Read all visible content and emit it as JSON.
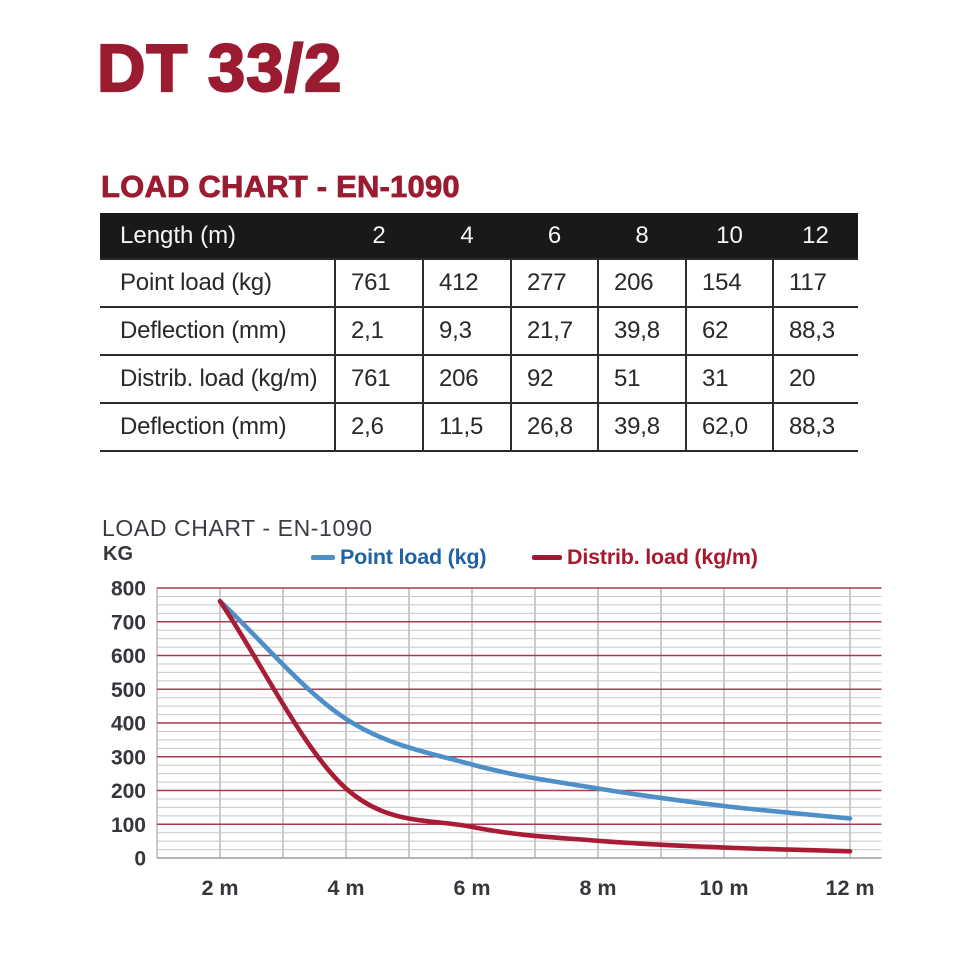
{
  "page": {
    "title": "DT 33/2"
  },
  "colors": {
    "maroon": "#9b1b31",
    "table_header_bg": "#1b1918",
    "grid_major_red": "#a63b52",
    "grid_minor_gray": "#c8c8c8",
    "grid_vertical_gray": "#a9a9a9",
    "axis_zero_gray": "#9a9a9a",
    "tick_label": "#36363d"
  },
  "table_section": {
    "heading": "LOAD CHART - EN-1090",
    "header": [
      "Length (m)",
      "2",
      "4",
      "6",
      "8",
      "10",
      "12"
    ],
    "rows": [
      [
        "Point load (kg)",
        "761",
        "412",
        "277",
        "206",
        "154",
        "117"
      ],
      [
        "Deflection (mm)",
        "2,1",
        "9,3",
        "21,7",
        "39,8",
        "62",
        "88,3"
      ],
      [
        "Distrib. load (kg/m)",
        "761",
        "206",
        "92",
        "51",
        "31",
        "20"
      ],
      [
        "Deflection (mm)",
        "2,6",
        "11,5",
        "26,8",
        "39,8",
        "62,0",
        "88,3"
      ]
    ]
  },
  "chart": {
    "title": "LOAD CHART - EN-1090",
    "y_axis_label": "KG",
    "legend": [
      {
        "label": "Point load (kg)",
        "text_color": "#2063a5",
        "dash_color": "#4e8fc7"
      },
      {
        "label": "Distrib. load (kg/m)",
        "text_color": "#a6192e",
        "dash_color": "#9c1b32"
      }
    ]
  },
  "chart_data": {
    "type": "line",
    "x": [
      2,
      4,
      6,
      8,
      10,
      12
    ],
    "x_tick_labels": [
      "2 m",
      "4 m",
      "6 m",
      "8 m",
      "10 m",
      "12 m"
    ],
    "series": [
      {
        "name": "Point load (kg)",
        "values": [
          761,
          412,
          277,
          206,
          154,
          117
        ],
        "color": "#4e8fc7"
      },
      {
        "name": "Distrib. load (kg/m)",
        "values": [
          761,
          206,
          92,
          51,
          31,
          20
        ],
        "color": "#a81c35"
      }
    ],
    "ylim": [
      0,
      800
    ],
    "y_major_step": 100,
    "y_minor_step": 25,
    "x_range": [
      1,
      12.5
    ],
    "grid": "horizontal major red every 100, horizontal minor gray every 25, vertical gray every 1 m",
    "legend_position": "top"
  }
}
